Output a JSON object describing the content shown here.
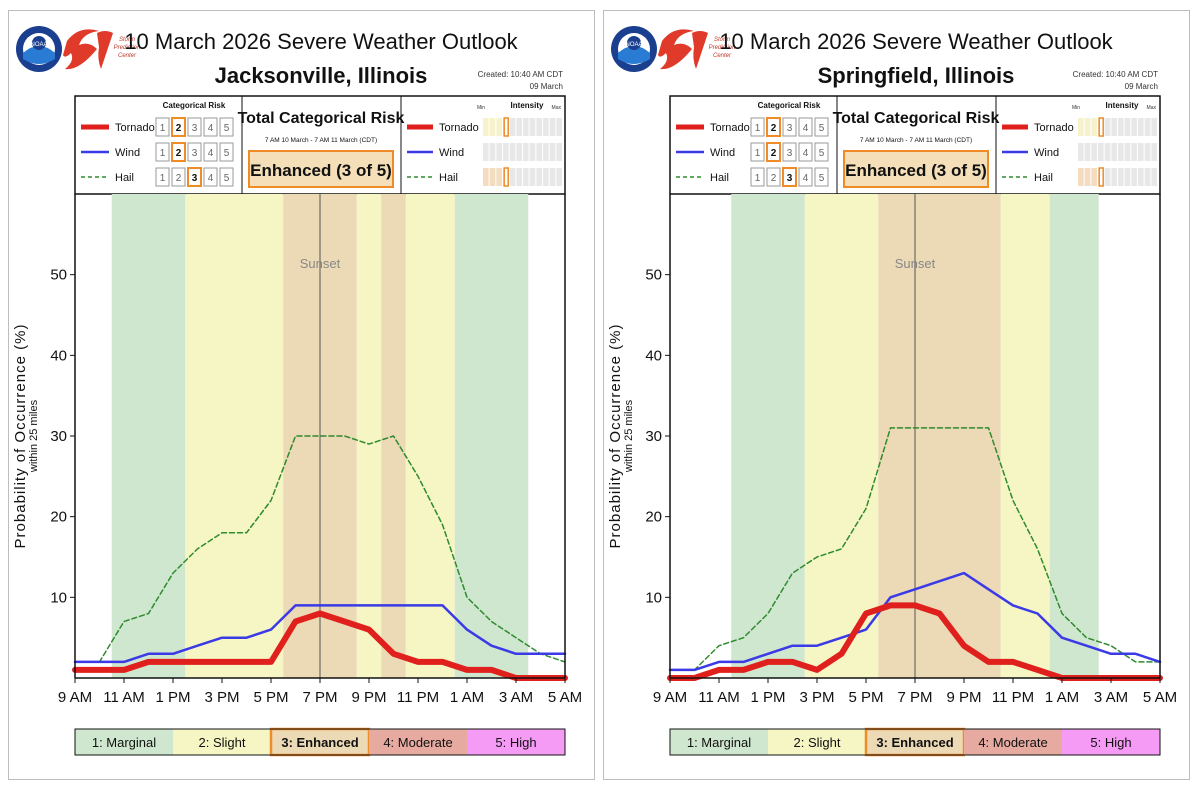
{
  "panels": [
    {
      "title": "10 March 2026 Severe Weather Outlook",
      "location": "Jacksonville, Illinois",
      "created_line1": "Created: 10:40 AM CDT",
      "created_line2": "09 March",
      "spc_logo_text": [
        "Storm",
        "Prediction",
        "Center"
      ],
      "noaa_logo_text": "NOAA",
      "categorical_header": "Categorical Risk",
      "total_header": "Total Categorical Risk",
      "total_window": "7 AM 10 March - 7 AM 11 March (CDT)",
      "total_value": "Enhanced (3 of 5)",
      "intensity": {
        "title": "Intensity",
        "min": "Min",
        "max": "Max"
      },
      "hazards": [
        {
          "name": "Tornado",
          "risk": 2,
          "intensity": 0.29
        },
        {
          "name": "Wind",
          "risk": 2,
          "intensity": null
        },
        {
          "name": "Hail",
          "risk": 3,
          "intensity": 0.29
        }
      ],
      "sunset_label": "Sunset",
      "risk_bar": [
        {
          "label": "1: Marginal",
          "color": "#cfe6cf"
        },
        {
          "label": "2: Slight",
          "color": "#f6f6c4"
        },
        {
          "label": "3: Enhanced",
          "color": "#ecd9b5",
          "selected": true
        },
        {
          "label": "4: Moderate",
          "color": "#e6aaa0"
        },
        {
          "label": "5: High",
          "color": "#f59af5"
        }
      ]
    },
    {
      "title": "10 March 2026 Severe Weather Outlook",
      "location": "Springfield, Illinois",
      "created_line1": "Created: 10:40 AM CDT",
      "created_line2": "09 March",
      "spc_logo_text": [
        "Storm",
        "Prediction",
        "Center"
      ],
      "noaa_logo_text": "NOAA",
      "categorical_header": "Categorical Risk",
      "total_header": "Total Categorical Risk",
      "total_window": "7 AM 10 March - 7 AM 11 March (CDT)",
      "total_value": "Enhanced (3 of 5)",
      "intensity": {
        "title": "Intensity",
        "min": "Min",
        "max": "Max"
      },
      "hazards": [
        {
          "name": "Tornado",
          "risk": 2,
          "intensity": 0.29
        },
        {
          "name": "Wind",
          "risk": 2,
          "intensity": null
        },
        {
          "name": "Hail",
          "risk": 3,
          "intensity": 0.29
        }
      ],
      "sunset_label": "Sunset",
      "risk_bar": [
        {
          "label": "1: Marginal",
          "color": "#cfe6cf"
        },
        {
          "label": "2: Slight",
          "color": "#f6f6c4"
        },
        {
          "label": "3: Enhanced",
          "color": "#ecd9b5",
          "selected": true
        },
        {
          "label": "4: Moderate",
          "color": "#e6aaa0"
        },
        {
          "label": "5: High",
          "color": "#f59af5"
        }
      ]
    }
  ],
  "chart_data": [
    {
      "type": "line",
      "title": "10 March 2026 Severe Weather Outlook - Jacksonville, Illinois",
      "ylabel": "Probability of Occurrence (%)",
      "ylabel_sub": "within 25 miles",
      "xlabel": "",
      "x_unit": "hours after 9 AM",
      "xlim": [
        0,
        20
      ],
      "ylim": [
        0,
        60
      ],
      "yticks": [
        10,
        20,
        30,
        40,
        50
      ],
      "xticks": [
        0,
        2,
        4,
        6,
        8,
        10,
        12,
        14,
        16,
        18,
        20
      ],
      "xtick_labels": [
        "9 AM",
        "11 AM",
        "1 PM",
        "3 PM",
        "5 PM",
        "7 PM",
        "9 PM",
        "11 PM",
        "1 AM",
        "3 AM",
        "5 AM"
      ],
      "sunset_hour": 10,
      "background_bands": [
        {
          "start": 1.5,
          "end": 4.5,
          "level": 1
        },
        {
          "start": 4.5,
          "end": 8.5,
          "level": 2
        },
        {
          "start": 8.5,
          "end": 11.5,
          "level": 3
        },
        {
          "start": 11.5,
          "end": 12.5,
          "level": 2
        },
        {
          "start": 12.5,
          "end": 13.5,
          "level": 3
        },
        {
          "start": 13.5,
          "end": 15.5,
          "level": 2
        },
        {
          "start": 15.5,
          "end": 18.5,
          "level": 1
        }
      ],
      "series": [
        {
          "name": "Hail",
          "style": "dashed",
          "color": "#2e8b2e",
          "x": [
            0,
            1,
            2,
            3,
            4,
            5,
            6,
            7,
            8,
            9,
            10,
            11,
            12,
            13,
            14,
            15,
            16,
            17,
            18,
            19,
            20
          ],
          "values": [
            2,
            2,
            7,
            8,
            13,
            16,
            18,
            18,
            22,
            30,
            30,
            30,
            29,
            30,
            25,
            19,
            10,
            7,
            5,
            3,
            2
          ]
        },
        {
          "name": "Wind",
          "style": "solid",
          "color": "#3a3ae6",
          "x": [
            0,
            1,
            2,
            3,
            4,
            5,
            6,
            7,
            8,
            9,
            10,
            11,
            12,
            13,
            14,
            15,
            16,
            17,
            18,
            19,
            20
          ],
          "values": [
            2,
            2,
            2,
            3,
            3,
            4,
            5,
            5,
            6,
            9,
            9,
            9,
            9,
            9,
            9,
            9,
            6,
            4,
            3,
            3,
            3
          ]
        },
        {
          "name": "Tornado",
          "style": "thick",
          "color": "#e0201c",
          "x": [
            0,
            1,
            2,
            3,
            4,
            5,
            6,
            7,
            8,
            9,
            10,
            11,
            12,
            13,
            14,
            15,
            16,
            17,
            18,
            19,
            20
          ],
          "values": [
            1,
            1,
            1,
            2,
            2,
            2,
            2,
            2,
            2,
            7,
            8,
            7,
            6,
            3,
            2,
            2,
            1,
            1,
            0,
            0,
            0
          ]
        }
      ]
    },
    {
      "type": "line",
      "title": "10 March 2026 Severe Weather Outlook - Springfield, Illinois",
      "ylabel": "Probability of Occurrence (%)",
      "ylabel_sub": "within 25 miles",
      "xlabel": "",
      "x_unit": "hours after 9 AM",
      "xlim": [
        0,
        20
      ],
      "ylim": [
        0,
        60
      ],
      "yticks": [
        10,
        20,
        30,
        40,
        50
      ],
      "xticks": [
        0,
        2,
        4,
        6,
        8,
        10,
        12,
        14,
        16,
        18,
        20
      ],
      "xtick_labels": [
        "9 AM",
        "11 AM",
        "1 PM",
        "3 PM",
        "5 PM",
        "7 PM",
        "9 PM",
        "11 PM",
        "1 AM",
        "3 AM",
        "5 AM"
      ],
      "sunset_hour": 10,
      "background_bands": [
        {
          "start": 2.5,
          "end": 5.5,
          "level": 1
        },
        {
          "start": 5.5,
          "end": 8.5,
          "level": 2
        },
        {
          "start": 8.5,
          "end": 13.5,
          "level": 3
        },
        {
          "start": 13.5,
          "end": 15.5,
          "level": 2
        },
        {
          "start": 15.5,
          "end": 17.5,
          "level": 1
        }
      ],
      "series": [
        {
          "name": "Hail",
          "style": "dashed",
          "color": "#2e8b2e",
          "x": [
            0,
            1,
            2,
            3,
            4,
            5,
            6,
            7,
            8,
            9,
            10,
            11,
            12,
            13,
            14,
            15,
            16,
            17,
            18,
            19,
            20
          ],
          "values": [
            1,
            1,
            4,
            5,
            8,
            13,
            15,
            16,
            21,
            31,
            31,
            31,
            31,
            31,
            22,
            16,
            8,
            5,
            4,
            2,
            2
          ]
        },
        {
          "name": "Wind",
          "style": "solid",
          "color": "#3a3ae6",
          "x": [
            0,
            1,
            2,
            3,
            4,
            5,
            6,
            7,
            8,
            9,
            10,
            11,
            12,
            13,
            14,
            15,
            16,
            17,
            18,
            19,
            20
          ],
          "values": [
            1,
            1,
            2,
            2,
            3,
            4,
            4,
            5,
            6,
            10,
            11,
            12,
            13,
            11,
            9,
            8,
            5,
            4,
            3,
            3,
            2
          ]
        },
        {
          "name": "Tornado",
          "style": "thick",
          "color": "#e0201c",
          "x": [
            0,
            1,
            2,
            3,
            4,
            5,
            6,
            7,
            8,
            9,
            10,
            11,
            12,
            13,
            14,
            15,
            16,
            17,
            18,
            19,
            20
          ],
          "values": [
            0,
            0,
            1,
            1,
            2,
            2,
            1,
            3,
            8,
            9,
            9,
            8,
            4,
            2,
            2,
            1,
            0,
            0,
            0,
            0,
            0
          ]
        }
      ]
    }
  ]
}
